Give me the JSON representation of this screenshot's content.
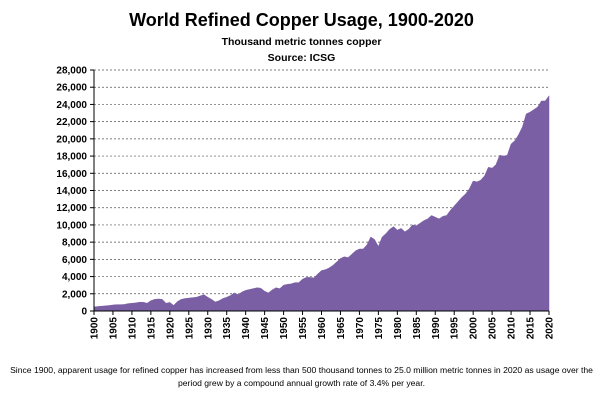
{
  "chart_data": {
    "type": "area",
    "title": "World Refined Copper Usage, 1900-2020",
    "subtitle": "Thousand metric tonnes copper",
    "source": "Source: ICSG",
    "footnote": "Since 1900, apparent usage for refined copper has increased from less than 500 thousand tonnes to 25.0 million metric tonnes in 2020 as usage over the period grew by a compound annual growth rate of 3.4% per year.",
    "xlabel": "",
    "ylabel": "",
    "xlim": [
      1900,
      2020
    ],
    "ylim": [
      0,
      28000
    ],
    "x_ticks": [
      1900,
      1905,
      1910,
      1915,
      1920,
      1925,
      1930,
      1935,
      1940,
      1945,
      1950,
      1955,
      1960,
      1965,
      1970,
      1975,
      1980,
      1985,
      1990,
      1995,
      2000,
      2005,
      2010,
      2015,
      2020
    ],
    "y_ticks": [
      0,
      2000,
      4000,
      6000,
      8000,
      10000,
      12000,
      14000,
      16000,
      18000,
      20000,
      22000,
      24000,
      26000,
      28000
    ],
    "y_tick_labels": [
      "0",
      "2,000",
      "4,000",
      "6,000",
      "8,000",
      "10,000",
      "12,000",
      "14,000",
      "16,000",
      "18,000",
      "20,000",
      "22,000",
      "24,000",
      "26,000",
      "28,000"
    ],
    "grid": "horizontal dashed",
    "fill_color": "#7b5fa4",
    "series": [
      {
        "points": [
          [
            1900,
            480
          ],
          [
            1901,
            520
          ],
          [
            1902,
            560
          ],
          [
            1903,
            600
          ],
          [
            1904,
            640
          ],
          [
            1905,
            700
          ],
          [
            1906,
            740
          ],
          [
            1907,
            740
          ],
          [
            1908,
            760
          ],
          [
            1909,
            860
          ],
          [
            1910,
            900
          ],
          [
            1911,
            940
          ],
          [
            1912,
            1020
          ],
          [
            1913,
            1020
          ],
          [
            1914,
            900
          ],
          [
            1915,
            1200
          ],
          [
            1916,
            1350
          ],
          [
            1917,
            1400
          ],
          [
            1918,
            1350
          ],
          [
            1919,
            900
          ],
          [
            1920,
            1000
          ],
          [
            1921,
            650
          ],
          [
            1922,
            1100
          ],
          [
            1923,
            1350
          ],
          [
            1924,
            1450
          ],
          [
            1925,
            1500
          ],
          [
            1926,
            1550
          ],
          [
            1927,
            1600
          ],
          [
            1928,
            1750
          ],
          [
            1929,
            1900
          ],
          [
            1930,
            1600
          ],
          [
            1931,
            1350
          ],
          [
            1932,
            1050
          ],
          [
            1933,
            1200
          ],
          [
            1934,
            1450
          ],
          [
            1935,
            1600
          ],
          [
            1936,
            1800
          ],
          [
            1937,
            2100
          ],
          [
            1938,
            1900
          ],
          [
            1939,
            2200
          ],
          [
            1940,
            2400
          ],
          [
            1941,
            2500
          ],
          [
            1942,
            2600
          ],
          [
            1943,
            2700
          ],
          [
            1944,
            2650
          ],
          [
            1945,
            2300
          ],
          [
            1946,
            2100
          ],
          [
            1947,
            2450
          ],
          [
            1948,
            2700
          ],
          [
            1949,
            2600
          ],
          [
            1950,
            3000
          ],
          [
            1951,
            3100
          ],
          [
            1952,
            3150
          ],
          [
            1953,
            3300
          ],
          [
            1954,
            3300
          ],
          [
            1955,
            3700
          ],
          [
            1956,
            3900
          ],
          [
            1957,
            3900
          ],
          [
            1958,
            3850
          ],
          [
            1959,
            4300
          ],
          [
            1960,
            4700
          ],
          [
            1961,
            4800
          ],
          [
            1962,
            5000
          ],
          [
            1963,
            5300
          ],
          [
            1964,
            5700
          ],
          [
            1965,
            6100
          ],
          [
            1966,
            6300
          ],
          [
            1967,
            6200
          ],
          [
            1968,
            6600
          ],
          [
            1969,
            7000
          ],
          [
            1970,
            7200
          ],
          [
            1971,
            7200
          ],
          [
            1972,
            7700
          ],
          [
            1973,
            8600
          ],
          [
            1974,
            8300
          ],
          [
            1975,
            7500
          ],
          [
            1976,
            8600
          ],
          [
            1977,
            9000
          ],
          [
            1978,
            9500
          ],
          [
            1979,
            9800
          ],
          [
            1980,
            9400
          ],
          [
            1981,
            9600
          ],
          [
            1982,
            9200
          ],
          [
            1983,
            9500
          ],
          [
            1984,
            10000
          ],
          [
            1985,
            9900
          ],
          [
            1986,
            10200
          ],
          [
            1987,
            10500
          ],
          [
            1988,
            10700
          ],
          [
            1989,
            11100
          ],
          [
            1990,
            10900
          ],
          [
            1991,
            10700
          ],
          [
            1992,
            11000
          ],
          [
            1993,
            11100
          ],
          [
            1994,
            11700
          ],
          [
            1995,
            12200
          ],
          [
            1996,
            12700
          ],
          [
            1997,
            13200
          ],
          [
            1998,
            13600
          ],
          [
            1999,
            14200
          ],
          [
            2000,
            15100
          ],
          [
            2001,
            15000
          ],
          [
            2002,
            15200
          ],
          [
            2003,
            15700
          ],
          [
            2004,
            16700
          ],
          [
            2005,
            16600
          ],
          [
            2006,
            17000
          ],
          [
            2007,
            18100
          ],
          [
            2008,
            18000
          ],
          [
            2009,
            18100
          ],
          [
            2010,
            19400
          ],
          [
            2011,
            19800
          ],
          [
            2012,
            20500
          ],
          [
            2013,
            21400
          ],
          [
            2014,
            22900
          ],
          [
            2015,
            23100
          ],
          [
            2016,
            23400
          ],
          [
            2017,
            23700
          ],
          [
            2018,
            24400
          ],
          [
            2019,
            24400
          ],
          [
            2020,
            25000
          ]
        ]
      }
    ]
  }
}
